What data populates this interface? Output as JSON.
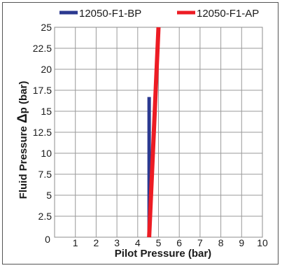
{
  "chart_data": {
    "type": "line",
    "title": "",
    "xlabel": "Pilot Pressure (bar)",
    "ylabel_prefix": "Fluid Pressure ",
    "ylabel_delta": "Δ",
    "ylabel_suffix": "p (bar)",
    "xlim": [
      0,
      10
    ],
    "ylim": [
      0,
      25
    ],
    "x_ticks": [
      0,
      1,
      2,
      3,
      4,
      5,
      6,
      7,
      8,
      9,
      10
    ],
    "x_tick_labels": [
      "0",
      "1",
      "2",
      "3",
      "4",
      "5",
      "6",
      "7",
      "8",
      "9",
      "10"
    ],
    "y_ticks": [
      2.5,
      5,
      7.5,
      10,
      12.5,
      15,
      17.5,
      20,
      22.5,
      25
    ],
    "y_tick_labels": [
      "2.5",
      "5",
      "7.5",
      "10",
      "12.5",
      "15",
      "17.5",
      "20",
      "22.5",
      "25"
    ],
    "grid": true,
    "legend_position": "top",
    "series": [
      {
        "name": "12050-F1-BP",
        "color": "#2b3990",
        "x": [
          4.55,
          4.55
        ],
        "y": [
          0,
          16.7
        ]
      },
      {
        "name": "12050-F1-AP",
        "color": "#ed1c24",
        "x": [
          4.55,
          5.0
        ],
        "y": [
          0,
          25
        ]
      }
    ]
  }
}
